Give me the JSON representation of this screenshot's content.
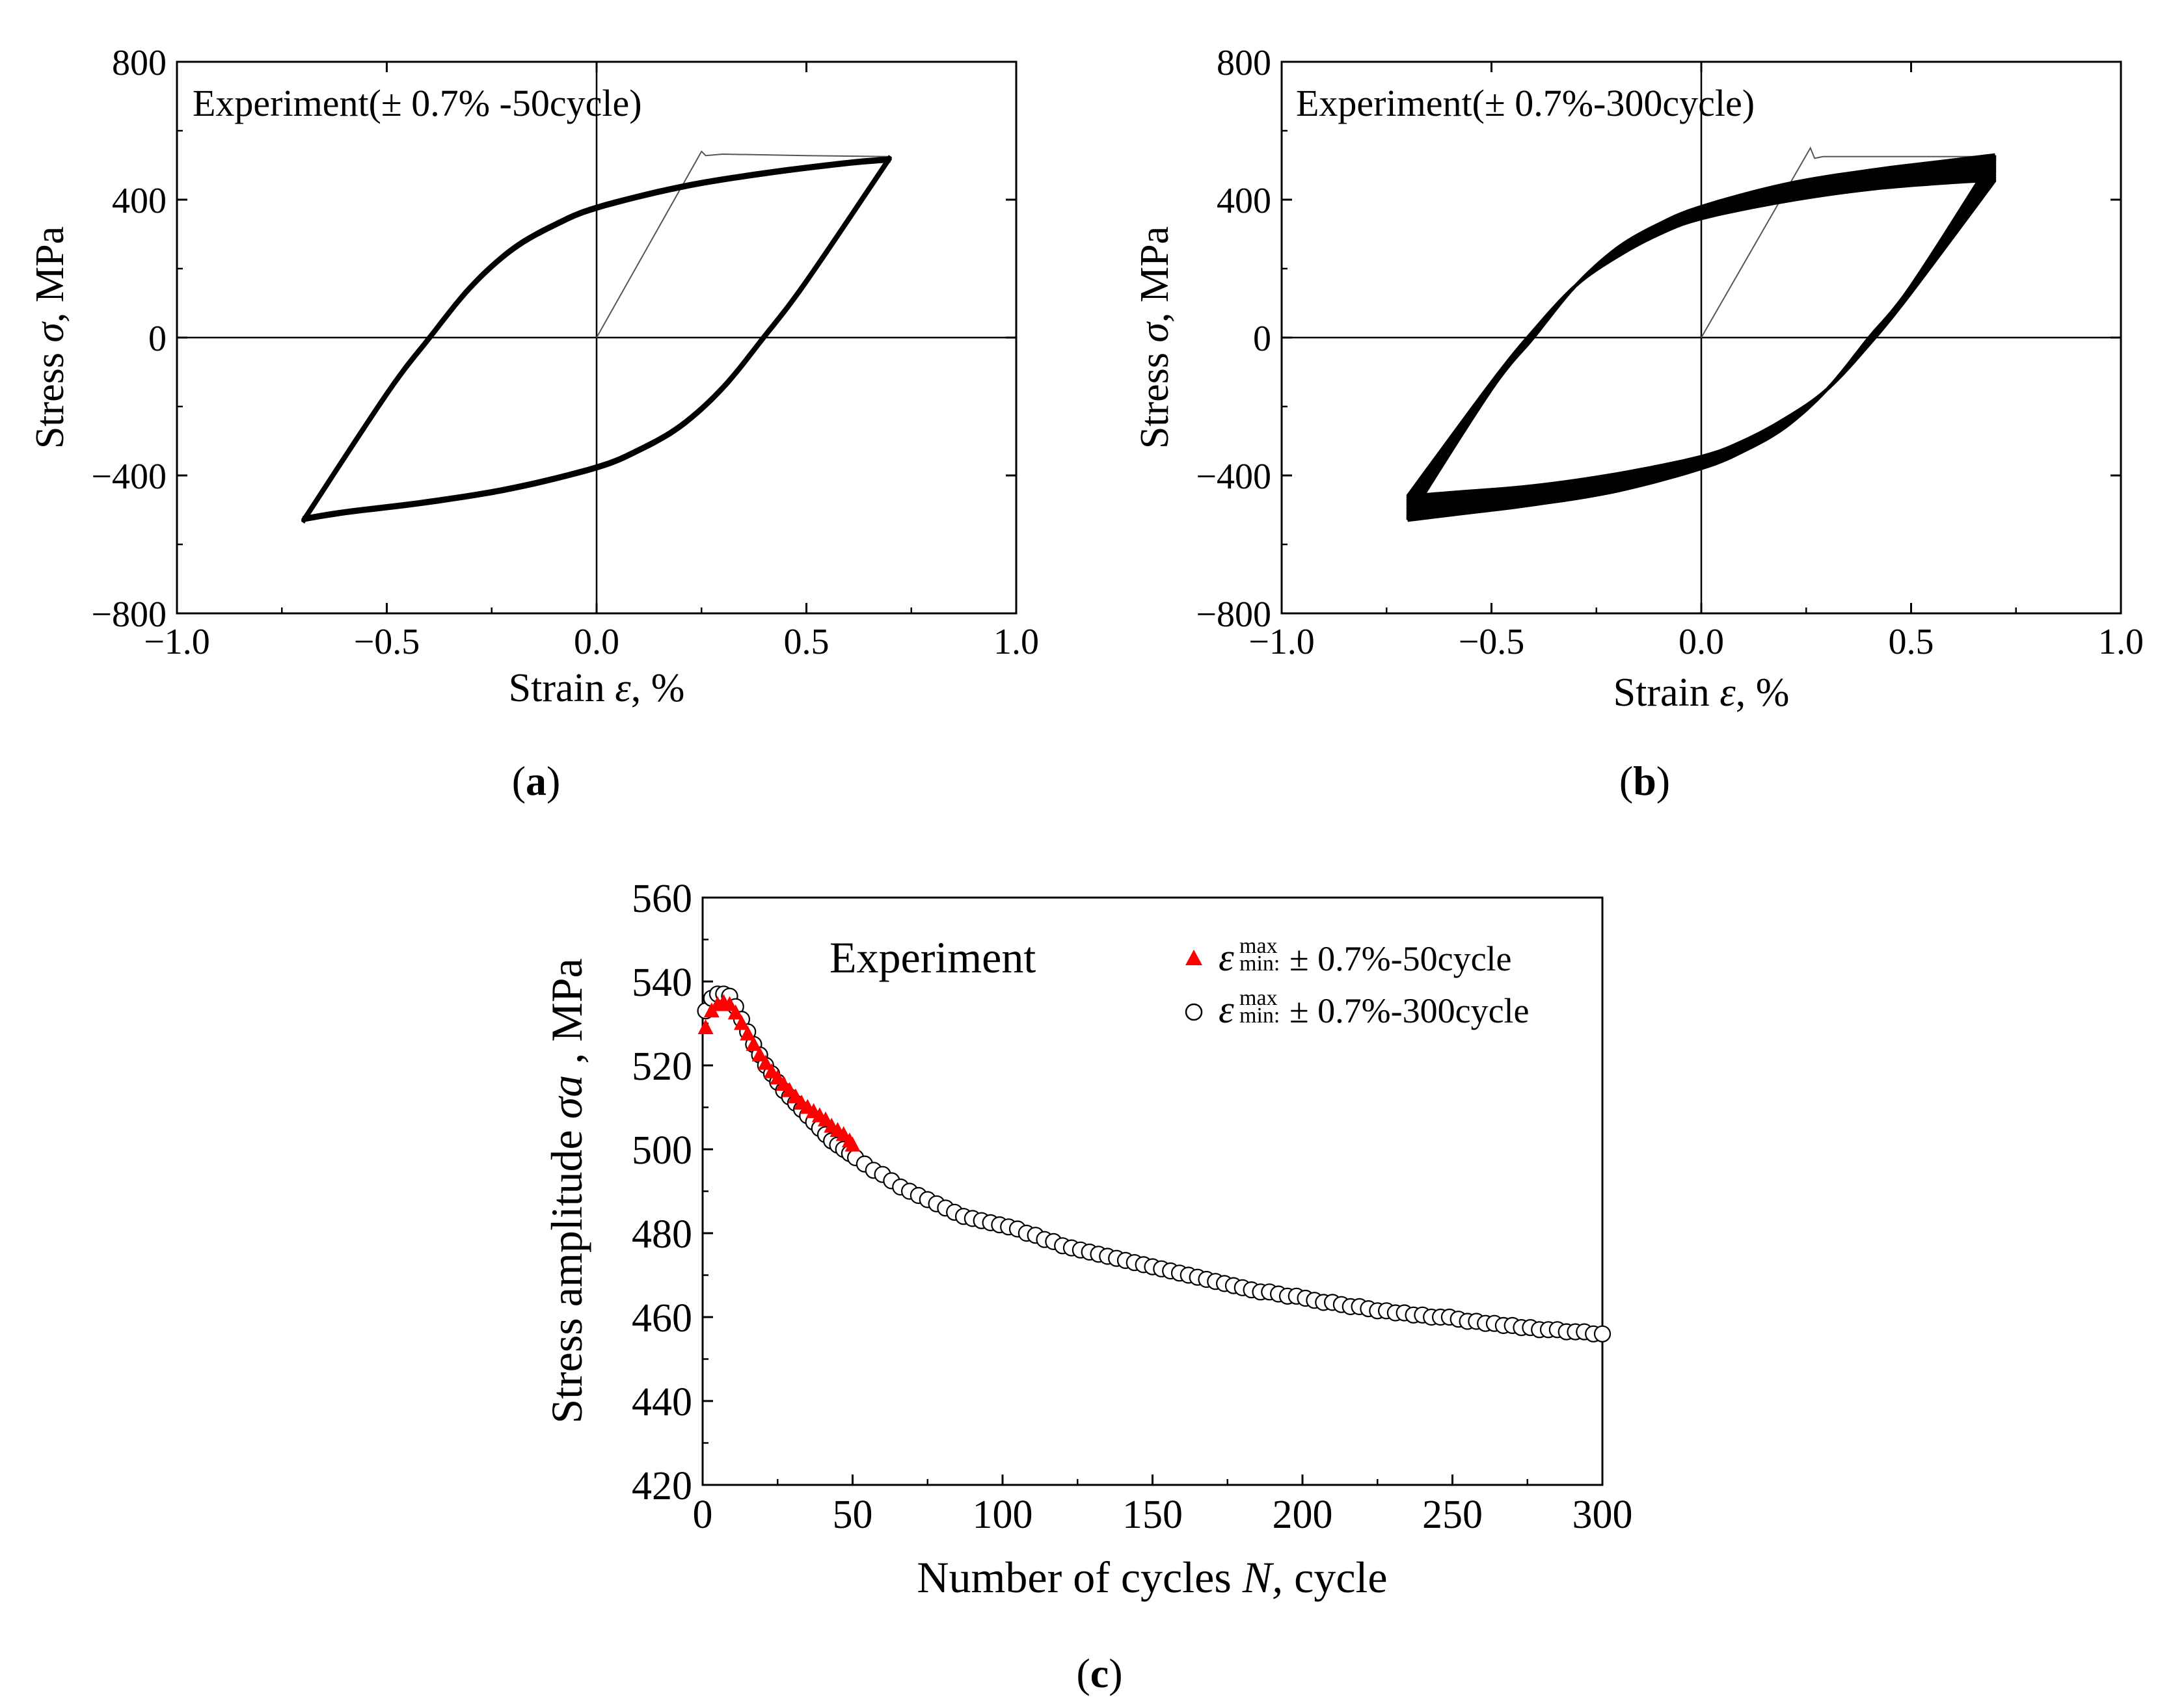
{
  "figure": {
    "captions": [
      "(a)",
      "(b)",
      "(c)"
    ],
    "caption_letters": [
      "a",
      "b",
      "c"
    ]
  },
  "chart_data": [
    {
      "id": "a",
      "type": "line",
      "title": "Experiment(± 0.7% -50cycle)",
      "xlabel_main": "Strain ",
      "xlabel_symbol": "ε",
      "xlabel_unit": ", %",
      "ylabel_main": "Stress  ",
      "ylabel_symbol": "σ",
      "ylabel_unit": ", MPa",
      "xlim": [
        -1.0,
        1.0
      ],
      "ylim": [
        -800,
        800
      ],
      "xticks": [
        -1.0,
        -0.5,
        0.0,
        0.5,
        1.0
      ],
      "xtick_labels": [
        "−1.0",
        "−0.5",
        "0.0",
        "0.5",
        "1.0"
      ],
      "yticks": [
        -800,
        -400,
        0,
        400,
        800
      ],
      "ytick_labels": [
        "−800",
        "−400",
        "0",
        "400",
        "800"
      ],
      "strain_amplitude": 0.7,
      "cycles": 50,
      "first_loading": {
        "strain": [
          0.0,
          0.25,
          0.26,
          0.3,
          0.5,
          0.7
        ],
        "stress": [
          0,
          540,
          528,
          532,
          528,
          525
        ]
      },
      "loop": {
        "upper_branch": {
          "strain": [
            -0.7,
            -0.5,
            -0.4,
            -0.3,
            -0.2,
            -0.1,
            0.0,
            0.2,
            0.4,
            0.6,
            0.7
          ],
          "stress": [
            -530,
            -160,
            0,
            150,
            260,
            330,
            380,
            440,
            480,
            510,
            520
          ]
        },
        "lower_branch": {
          "strain": [
            0.7,
            0.5,
            0.4,
            0.3,
            0.2,
            0.1,
            0.0,
            -0.2,
            -0.4,
            -0.6,
            -0.7
          ],
          "stress": [
            520,
            160,
            0,
            -150,
            -260,
            -330,
            -380,
            -440,
            -480,
            -510,
            -530
          ]
        }
      },
      "peak_stress_last": 520,
      "valley_stress_last": -530
    },
    {
      "id": "b",
      "type": "line",
      "title": "Experiment(± 0.7%-300cycle)",
      "xlabel_main": "Strain ",
      "xlabel_symbol": "ε",
      "xlabel_unit": ", %",
      "ylabel_main": "Stress  ",
      "ylabel_symbol": "σ",
      "ylabel_unit": ", MPa",
      "xlim": [
        -1.0,
        1.0
      ],
      "ylim": [
        -800,
        800
      ],
      "xticks": [
        -1.0,
        -0.5,
        0.0,
        0.5,
        1.0
      ],
      "xtick_labels": [
        "−1.0",
        "−0.5",
        "0.0",
        "0.5",
        "1.0"
      ],
      "yticks": [
        -800,
        -400,
        0,
        400,
        800
      ],
      "ytick_labels": [
        "−800",
        "−400",
        "0",
        "400",
        "800"
      ],
      "strain_amplitude": 0.7,
      "cycles": 300,
      "first_loading": {
        "strain": [
          0.0,
          0.26,
          0.27,
          0.29,
          0.5,
          0.7
        ],
        "stress": [
          0,
          550,
          520,
          525,
          525,
          525
        ]
      },
      "loop_first": {
        "upper_branch": {
          "strain": [
            -0.7,
            -0.5,
            -0.4,
            -0.3,
            -0.2,
            -0.1,
            0.0,
            0.2,
            0.4,
            0.6,
            0.7
          ],
          "stress": [
            -530,
            -150,
            0,
            150,
            260,
            330,
            380,
            445,
            485,
            515,
            530
          ]
        },
        "lower_branch": {
          "strain": [
            0.7,
            0.5,
            0.4,
            0.3,
            0.2,
            0.1,
            0.0,
            -0.2,
            -0.4,
            -0.6,
            -0.7
          ],
          "stress": [
            530,
            150,
            0,
            -150,
            -260,
            -330,
            -380,
            -445,
            -485,
            -515,
            -530
          ]
        }
      },
      "loop_last": {
        "upper_branch": {
          "strain": [
            -0.7,
            -0.5,
            -0.4,
            -0.3,
            -0.2,
            -0.1,
            0.0,
            0.2,
            0.4,
            0.6,
            0.7
          ],
          "stress": [
            -460,
            -130,
            20,
            150,
            235,
            300,
            345,
            395,
            430,
            450,
            456
          ]
        },
        "lower_branch": {
          "strain": [
            0.7,
            0.5,
            0.4,
            0.3,
            0.2,
            0.1,
            0.0,
            -0.2,
            -0.4,
            -0.6,
            -0.7
          ],
          "stress": [
            456,
            130,
            -20,
            -150,
            -235,
            -300,
            -345,
            -395,
            -430,
            -450,
            -460
          ]
        }
      }
    },
    {
      "id": "c",
      "type": "scatter",
      "title": "Experiment",
      "xlabel_main": "Number of cycles ",
      "xlabel_symbol": "N,",
      "xlabel_unit": " cycle",
      "ylabel_main": "Stress amplitude ",
      "ylabel_symbol": "σa",
      "ylabel_unit": " , MPa",
      "xlim": [
        0,
        300
      ],
      "ylim": [
        420,
        560
      ],
      "xticks": [
        0,
        50,
        100,
        150,
        200,
        250,
        300
      ],
      "xtick_labels": [
        "0",
        "50",
        "100",
        "150",
        "200",
        "250",
        "300"
      ],
      "yticks": [
        420,
        440,
        460,
        480,
        500,
        520,
        540,
        560
      ],
      "ytick_labels": [
        "420",
        "440",
        "460",
        "480",
        "500",
        "520",
        "540",
        "560"
      ],
      "legend_position": "top-right",
      "series": [
        {
          "name": "± 0.7%-50cycle",
          "legend_symbol": "ε",
          "legend_sup": "max",
          "legend_sub": "min:",
          "marker": "triangle",
          "color": "#ff0000",
          "x": [
            1,
            3,
            5,
            7,
            9,
            11,
            13,
            15,
            17,
            19,
            21,
            23,
            25,
            27,
            29,
            31,
            33,
            35,
            37,
            39,
            41,
            43,
            45,
            47,
            49,
            50
          ],
          "y": [
            529,
            533,
            534.5,
            535,
            534.5,
            532.5,
            530,
            527.5,
            525,
            522.5,
            520.5,
            518.5,
            517,
            515.5,
            514,
            512.5,
            511,
            510,
            509,
            508,
            507,
            505.5,
            504.5,
            503.5,
            502,
            501
          ]
        },
        {
          "name": "± 0.7%-300cycle",
          "legend_symbol": "ε",
          "legend_sup": "max",
          "legend_sub": "min:",
          "marker": "circle-open",
          "color": "#000000",
          "x": [
            1,
            3,
            5,
            7,
            9,
            11,
            13,
            15,
            17,
            19,
            21,
            23,
            25,
            27,
            29,
            31,
            33,
            35,
            37,
            39,
            41,
            43,
            45,
            47,
            49,
            51,
            54,
            57,
            60,
            63,
            66,
            69,
            72,
            75,
            78,
            81,
            84,
            87,
            90,
            93,
            96,
            99,
            102,
            105,
            108,
            111,
            114,
            117,
            120,
            123,
            126,
            129,
            132,
            135,
            138,
            141,
            144,
            147,
            150,
            153,
            156,
            159,
            162,
            165,
            168,
            171,
            174,
            177,
            180,
            183,
            186,
            189,
            192,
            195,
            198,
            201,
            204,
            207,
            210,
            213,
            216,
            219,
            222,
            225,
            228,
            231,
            234,
            237,
            240,
            243,
            246,
            249,
            252,
            255,
            258,
            261,
            264,
            267,
            270,
            273,
            276,
            279,
            282,
            285,
            288,
            291,
            294,
            297,
            300
          ],
          "y": [
            533,
            536,
            537,
            537,
            536.5,
            534,
            531,
            528,
            525,
            522.5,
            520,
            518,
            516,
            514,
            512.5,
            511,
            509.5,
            508,
            506.5,
            505,
            503.5,
            502,
            501,
            500,
            499,
            498,
            496.5,
            495,
            494,
            492.5,
            491,
            490,
            489,
            488,
            487,
            486,
            485,
            484,
            483.5,
            483,
            482.5,
            482,
            481.5,
            481,
            480,
            479.5,
            478.5,
            478,
            477,
            476.5,
            476,
            475.5,
            475,
            474.5,
            474,
            473.5,
            473,
            472.5,
            472,
            471.5,
            471,
            470.5,
            470,
            469.5,
            469,
            468.5,
            468,
            467.5,
            467,
            466.5,
            466,
            466,
            465.5,
            465,
            465,
            464.5,
            464,
            463.5,
            463.5,
            463,
            462.5,
            462.5,
            462,
            461.5,
            461.5,
            461,
            461,
            460.5,
            460.5,
            460,
            460,
            460,
            459.5,
            459,
            459,
            458.5,
            458.5,
            458,
            458,
            457.5,
            457.5,
            457,
            457,
            457,
            456.5,
            456.5,
            456.5,
            456,
            456
          ]
        }
      ]
    }
  ]
}
